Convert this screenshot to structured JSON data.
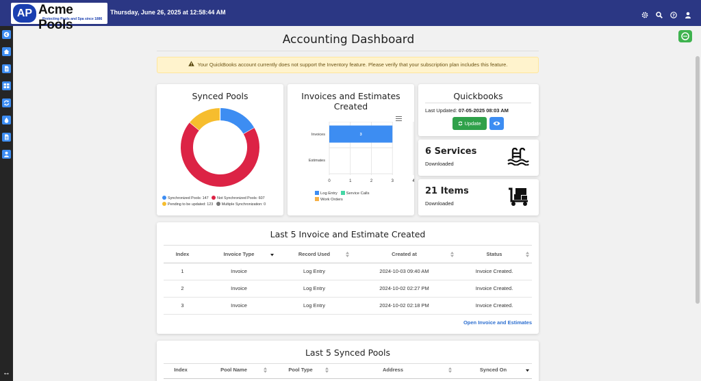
{
  "header": {
    "logo_badge": "AP",
    "logo_name": "Acme Pools",
    "logo_tagline": "Protecting Pools and Spa since 1886",
    "datetime": "Thursday, June 26, 2025 at 12:58:44 AM",
    "icons": [
      "gear-icon",
      "search-icon",
      "help-icon",
      "user-icon"
    ]
  },
  "sidebar": {
    "items": [
      "arrow-circle-icon",
      "home-icon",
      "document-icon",
      "grid-icon",
      "sync-icon",
      "water-drop-icon",
      "file-icon",
      "person-icon"
    ],
    "expand_icon": "expand-arrows-icon"
  },
  "page": {
    "title": "Accounting Dashboard"
  },
  "alert": {
    "text": "Your QuickBooks account currently does not support the Inventory feature. Please verify that your subscription plan includes this feature."
  },
  "synced_pools": {
    "title": "Synced Pools",
    "legend": [
      {
        "label": "Synchronized Pools: 147",
        "color": "#3d8df2"
      },
      {
        "label": "Not Synchronized Pools: 607",
        "color": "#dc2345"
      },
      {
        "label": "Pending to be updated: 123",
        "color": "#f6bd2e"
      },
      {
        "label": "Multiple Synchronization: 0",
        "color": "#777777"
      }
    ]
  },
  "invoices_chart": {
    "title_line1": "Invoices and Estimates",
    "title_line2": "Created",
    "legend": [
      {
        "label": "Log Entry",
        "color": "#3d8df2"
      },
      {
        "label": "Service Calls",
        "color": "#45d6a5"
      },
      {
        "label": "Work Orders",
        "color": "#f6b146"
      }
    ]
  },
  "chart_data": [
    {
      "type": "pie",
      "categories": [
        "Synchronized Pools",
        "Not Synchronized Pools",
        "Pending to be updated",
        "Multiple Synchronization"
      ],
      "values": [
        147,
        607,
        123,
        0
      ],
      "colors": [
        "#3d8df2",
        "#dc2345",
        "#f6bd2e",
        "#777777"
      ],
      "title": "Synced Pools",
      "legend": "bottom"
    },
    {
      "type": "bar",
      "orientation": "horizontal",
      "categories": [
        "Invoices",
        "Estimates"
      ],
      "series": [
        {
          "name": "Log Entry",
          "values": [
            3,
            0
          ],
          "color": "#3d8df2"
        },
        {
          "name": "Service Calls",
          "values": [
            0,
            0
          ],
          "color": "#45d6a5"
        },
        {
          "name": "Work Orders",
          "values": [
            0,
            0
          ],
          "color": "#f6b146"
        }
      ],
      "data_labels": [
        "3"
      ],
      "ticks": [
        "0",
        "1",
        "2",
        "3",
        "4"
      ],
      "xlim": [
        0,
        4
      ],
      "title": "Invoices and Estimates Created",
      "legend": "bottom"
    }
  ],
  "quickbooks": {
    "title": "Quickbooks",
    "last_updated_label": "Last Updated:",
    "last_updated_value": "07-05-2025 08:03 AM",
    "update_label": "Update"
  },
  "services": {
    "count": "6 Services",
    "sub": "Downloaded"
  },
  "items": {
    "count": "21 Items",
    "sub": "Downloaded"
  },
  "last_invoices": {
    "title": "Last 5 Invoice and Estimate Created",
    "columns": [
      "Index",
      "Invoice Type",
      "Record Used",
      "Created at",
      "Status"
    ],
    "rows": [
      [
        "1",
        "Invoice",
        "Log Entry",
        "2024-10-03 09:40 AM",
        "Invoice Created."
      ],
      [
        "2",
        "Invoice",
        "Log Entry",
        "2024-10-02 02:27 PM",
        "Invoice Created."
      ],
      [
        "3",
        "Invoice",
        "Log Entry",
        "2024-10-02 02:18 PM",
        "Invoice Created."
      ]
    ],
    "link": "Open Invoice and Estimates"
  },
  "last_synced": {
    "title": "Last 5 Synced Pools",
    "columns": [
      "Index",
      "Pool Name",
      "Pool Type",
      "Address",
      "Synced On"
    ]
  }
}
